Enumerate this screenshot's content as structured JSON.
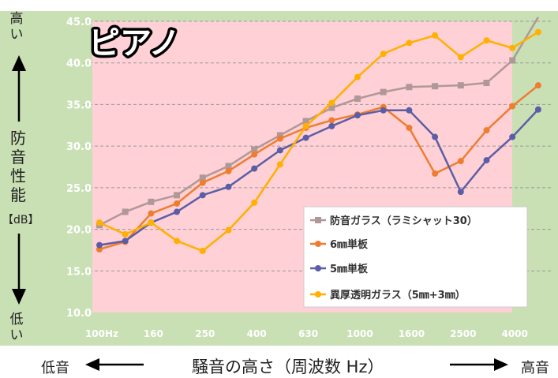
{
  "chart_data": {
    "type": "line",
    "title": "ピアノ",
    "x_labels": [
      "100Hz",
      "",
      "160",
      "",
      "250",
      "",
      "400",
      "",
      "630",
      "",
      "1000",
      "",
      "1600",
      "",
      "2500",
      "",
      "4000",
      ""
    ],
    "ylim": [
      10,
      45
    ],
    "y_ticks": [
      "10.0",
      "15.0",
      "20.0",
      "25.0",
      "30.0",
      "35.0",
      "40.0",
      "45.0"
    ],
    "grid": true,
    "legend_position": "bottom-right",
    "highlight_band": {
      "from_index": 0,
      "to_index": 16,
      "color": "#ffd0d5"
    },
    "outer_background": "#c8e0b4",
    "series": [
      {
        "name": "防音ガラス（ラミシャット30）",
        "color": "#b09898",
        "marker": "square",
        "values": [
          20.5,
          22.1,
          23.3,
          24.1,
          26.2,
          27.6,
          29.6,
          31.3,
          33.0,
          34.6,
          35.7,
          36.5,
          37.1,
          37.2,
          37.3,
          37.6,
          40.3,
          45.5
        ]
      },
      {
        "name": "6㎜単板",
        "color": "#ed7d31",
        "marker": "circle",
        "values": [
          17.6,
          18.5,
          21.9,
          23.1,
          25.6,
          27.0,
          29.0,
          30.9,
          32.2,
          33.1,
          33.8,
          34.7,
          32.2,
          26.7,
          28.2,
          31.9,
          34.8,
          37.3
        ]
      },
      {
        "name": "5㎜単板",
        "color": "#5b5ea6",
        "marker": "circle",
        "values": [
          18.1,
          18.6,
          20.8,
          22.1,
          24.1,
          25.1,
          27.3,
          29.5,
          31.0,
          32.4,
          33.7,
          34.3,
          34.3,
          31.1,
          24.5,
          28.3,
          31.1,
          34.4
        ]
      },
      {
        "name": "異厚透明ガラス（5㎜+3㎜）",
        "color": "#ffb000",
        "marker": "circle",
        "values": [
          20.8,
          19.4,
          20.8,
          18.6,
          17.4,
          19.9,
          23.2,
          27.8,
          32.4,
          35.2,
          38.3,
          41.1,
          42.4,
          43.3,
          40.7,
          42.7,
          41.8,
          43.7
        ]
      }
    ]
  },
  "labels": {
    "y_high": "高い",
    "y_low": "低い",
    "y_main": "防音性能",
    "y_unit": "【dB】",
    "x_low": "低音",
    "x_high": "高音",
    "x_main": "騒音の高さ（周波数 Hz）"
  },
  "colors": {
    "axis_arrow": "#000000",
    "grid": "#9a9a9a",
    "tick_text": "#ffffff"
  }
}
